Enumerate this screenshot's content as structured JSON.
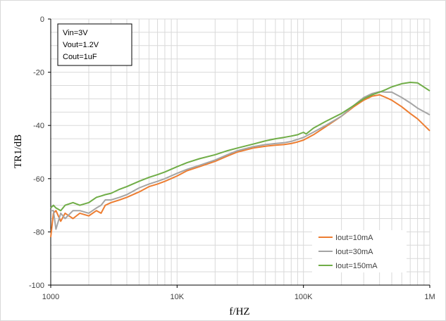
{
  "chart_data": {
    "type": "line",
    "xscale": "log",
    "xlim": [
      1000,
      1000000
    ],
    "ylim": [
      -100,
      0
    ],
    "xticks": [
      1000,
      10000,
      100000,
      1000000
    ],
    "xtick_labels": [
      "1000",
      "10K",
      "100K",
      "1M"
    ],
    "yticks": [
      0,
      -20,
      -40,
      -60,
      -80,
      -100
    ],
    "ytick_labels": [
      "0",
      "-20",
      "-40",
      "-60",
      "-80",
      "-100"
    ],
    "xlabel": "f/HZ",
    "ylabel": "TR1/dB",
    "grid": true,
    "legend_position": "bottom-right",
    "annotation_lines": [
      "Vin=3V",
      "Vout=1.2V",
      "Cout=1uF"
    ],
    "series": [
      {
        "name": "Iout=10mA",
        "color": "#ED7D31",
        "x": [
          1000,
          1050,
          1100,
          1200,
          1300,
          1500,
          1700,
          2000,
          2300,
          2500,
          2700,
          3000,
          3500,
          4000,
          5000,
          6000,
          7000,
          8000,
          10000,
          12000,
          15000,
          20000,
          25000,
          30000,
          40000,
          50000,
          60000,
          70000,
          80000,
          90000,
          100000,
          120000,
          150000,
          200000,
          250000,
          300000,
          350000,
          400000,
          450000,
          500000,
          600000,
          700000,
          800000,
          1000000
        ],
        "y": [
          -82,
          -73,
          -72,
          -76,
          -73,
          -75,
          -73,
          -74,
          -72,
          -73,
          -70,
          -69,
          -68,
          -67,
          -65,
          -63,
          -62,
          -61,
          -59,
          -57,
          -55.5,
          -53.5,
          -51.5,
          -50,
          -48.5,
          -47.8,
          -47.4,
          -47.2,
          -46.8,
          -46.2,
          -45.5,
          -43.5,
          -40.5,
          -36.5,
          -33,
          -30.5,
          -29,
          -28.5,
          -29.5,
          -30.5,
          -33,
          -35.5,
          -37.5,
          -42
        ]
      },
      {
        "name": "Iout=30mA",
        "color": "#A5A5A5",
        "x": [
          1000,
          1050,
          1100,
          1200,
          1300,
          1500,
          1700,
          2000,
          2300,
          2500,
          2700,
          3000,
          3500,
          4000,
          5000,
          6000,
          7000,
          8000,
          10000,
          12000,
          15000,
          20000,
          25000,
          30000,
          40000,
          50000,
          60000,
          70000,
          80000,
          90000,
          100000,
          120000,
          150000,
          200000,
          250000,
          300000,
          350000,
          400000,
          450000,
          500000,
          600000,
          700000,
          800000,
          1000000
        ],
        "y": [
          -72,
          -72,
          -79,
          -73,
          -75,
          -72,
          -72,
          -73,
          -71,
          -70,
          -68,
          -68,
          -67,
          -66,
          -63.5,
          -62,
          -61,
          -60,
          -58,
          -56.5,
          -55,
          -53,
          -51,
          -49.5,
          -48,
          -47.2,
          -46.8,
          -46.5,
          -46,
          -45.2,
          -44.5,
          -42.5,
          -40,
          -36.5,
          -32.5,
          -29.5,
          -28,
          -27.3,
          -27.5,
          -27.5,
          -29.5,
          -31.5,
          -33.5,
          -36
        ]
      },
      {
        "name": "Iout=150mA",
        "color": "#70AD47",
        "x": [
          1000,
          1050,
          1100,
          1200,
          1300,
          1500,
          1700,
          2000,
          2300,
          2500,
          2700,
          3000,
          3500,
          4000,
          5000,
          6000,
          7000,
          8000,
          10000,
          12000,
          15000,
          20000,
          25000,
          30000,
          40000,
          50000,
          60000,
          70000,
          80000,
          90000,
          95000,
          100000,
          105000,
          120000,
          150000,
          200000,
          250000,
          300000,
          350000,
          400000,
          450000,
          500000,
          600000,
          700000,
          800000,
          1000000
        ],
        "y": [
          -71,
          -70,
          -71,
          -72,
          -70,
          -69,
          -70,
          -69,
          -67,
          -66.5,
          -66,
          -65.5,
          -64,
          -63,
          -61,
          -59.5,
          -58.5,
          -57.5,
          -55.5,
          -54,
          -52.5,
          -51,
          -49.5,
          -48.5,
          -47,
          -45.8,
          -45,
          -44.5,
          -44,
          -43.5,
          -43,
          -42.6,
          -43.2,
          -41,
          -38.5,
          -35.5,
          -32.5,
          -30,
          -28.5,
          -27.5,
          -26.5,
          -25.5,
          -24.3,
          -23.8,
          -24,
          -27
        ]
      }
    ]
  }
}
